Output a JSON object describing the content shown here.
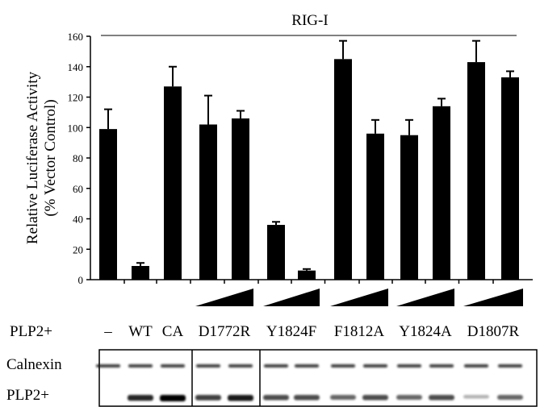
{
  "chart_data": {
    "type": "bar",
    "title": "RIG-I",
    "ylabel": [
      "Relative Luciferase Activity",
      "(% Vector Control)"
    ],
    "categories": [
      null,
      null,
      null,
      null,
      null,
      null,
      null,
      null,
      null,
      null,
      null,
      null,
      null
    ],
    "series": [
      {
        "color": "#000000",
        "values": [
          99,
          9,
          127,
          102,
          106,
          36,
          6,
          145,
          96,
          95,
          114,
          143,
          133
        ],
        "errors": [
          13,
          2,
          13,
          19,
          5,
          2,
          1,
          12,
          9,
          10,
          5,
          14,
          4
        ]
      }
    ],
    "ylim": [
      0,
      160
    ],
    "yticks": [
      0,
      20,
      40,
      60,
      80,
      100,
      120,
      140,
      160
    ]
  },
  "lanes": {
    "row_label": "PLP2+",
    "labels": [
      "–",
      "WT",
      "CA",
      "D1772R",
      "Y1824F",
      "F1812A",
      "Y1824A",
      "D1807R"
    ]
  },
  "blot": {
    "labels": [
      "Calnexin",
      "PLP2+"
    ]
  }
}
